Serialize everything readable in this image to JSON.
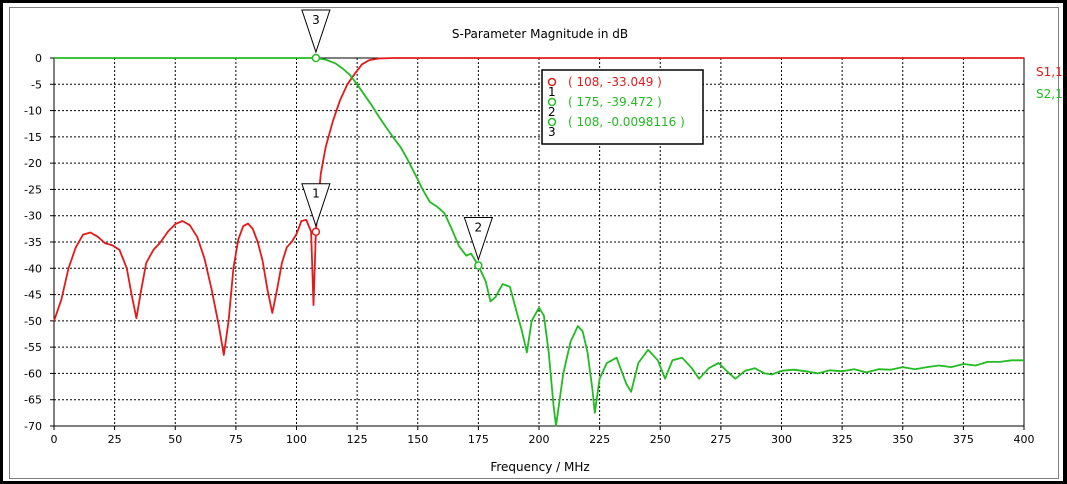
{
  "chart_data": {
    "type": "line",
    "title": "S-Parameter Magnitude in dB",
    "xlabel": "Frequency / MHz",
    "ylabel": "",
    "xlim": [
      0,
      400
    ],
    "ylim": [
      -70,
      0
    ],
    "xticks": [
      0,
      25,
      50,
      75,
      100,
      125,
      150,
      175,
      200,
      225,
      250,
      275,
      300,
      325,
      350,
      375,
      400
    ],
    "yticks": [
      0,
      -5,
      -10,
      -15,
      -20,
      -25,
      -30,
      -35,
      -40,
      -45,
      -50,
      -55,
      -60,
      -65,
      -70
    ],
    "grid": true,
    "legend_placement": "right",
    "series": [
      {
        "name": "S1,1",
        "color": "#e31a1a",
        "points": [
          [
            0,
            -50
          ],
          [
            3,
            -46
          ],
          [
            6,
            -40
          ],
          [
            9,
            -36
          ],
          [
            12,
            -33.6
          ],
          [
            15,
            -33.2
          ],
          [
            18,
            -34
          ],
          [
            21,
            -35.2
          ],
          [
            24,
            -35.6
          ],
          [
            27,
            -36.5
          ],
          [
            30,
            -40
          ],
          [
            32,
            -45
          ],
          [
            34,
            -49.5
          ],
          [
            36,
            -44
          ],
          [
            38,
            -39
          ],
          [
            41,
            -36.5
          ],
          [
            44,
            -35
          ],
          [
            47,
            -33
          ],
          [
            50,
            -31.6
          ],
          [
            53,
            -31
          ],
          [
            56,
            -31.8
          ],
          [
            59,
            -34
          ],
          [
            62,
            -38
          ],
          [
            65,
            -44
          ],
          [
            68,
            -51
          ],
          [
            70,
            -56.5
          ],
          [
            72,
            -50
          ],
          [
            74,
            -40
          ],
          [
            76,
            -34.5
          ],
          [
            78,
            -32
          ],
          [
            80,
            -31.5
          ],
          [
            82,
            -32.5
          ],
          [
            84,
            -35
          ],
          [
            86,
            -38.5
          ],
          [
            88,
            -44
          ],
          [
            90,
            -48.5
          ],
          [
            92,
            -44
          ],
          [
            94,
            -39
          ],
          [
            96,
            -36
          ],
          [
            98,
            -35
          ],
          [
            100,
            -33.5
          ],
          [
            102,
            -31
          ],
          [
            104,
            -30.8
          ],
          [
            106,
            -33
          ],
          [
            107,
            -47
          ],
          [
            108,
            -33
          ],
          [
            109,
            -27
          ],
          [
            110,
            -22
          ],
          [
            112,
            -17
          ],
          [
            115,
            -12
          ],
          [
            118,
            -8
          ],
          [
            121,
            -5
          ],
          [
            124,
            -3
          ],
          [
            127,
            -1.2
          ],
          [
            130,
            -0.4
          ],
          [
            134,
            -0.1
          ],
          [
            140,
            0
          ],
          [
            400,
            0
          ]
        ]
      },
      {
        "name": "S2,1",
        "color": "#22bb22",
        "points": [
          [
            0,
            0
          ],
          [
            100,
            0
          ],
          [
            108,
            0
          ],
          [
            112,
            -0.3
          ],
          [
            116,
            -1
          ],
          [
            119,
            -2
          ],
          [
            122,
            -3.2
          ],
          [
            125,
            -5
          ],
          [
            128,
            -7
          ],
          [
            131,
            -9
          ],
          [
            134,
            -11.2
          ],
          [
            137,
            -13.2
          ],
          [
            140,
            -15.2
          ],
          [
            143,
            -17
          ],
          [
            146,
            -19.5
          ],
          [
            149,
            -22.2
          ],
          [
            152,
            -25
          ],
          [
            155,
            -27.4
          ],
          [
            158,
            -28.3
          ],
          [
            161,
            -29.5
          ],
          [
            164,
            -32.5
          ],
          [
            167,
            -35.8
          ],
          [
            170,
            -37.6
          ],
          [
            172,
            -37.2
          ],
          [
            175,
            -39.5
          ],
          [
            178,
            -42.5
          ],
          [
            180,
            -46.3
          ],
          [
            182,
            -45.5
          ],
          [
            185,
            -43
          ],
          [
            188,
            -43.5
          ],
          [
            190,
            -47
          ],
          [
            193,
            -52
          ],
          [
            195,
            -56
          ],
          [
            197,
            -50
          ],
          [
            200,
            -47.5
          ],
          [
            202,
            -49
          ],
          [
            204,
            -56
          ],
          [
            206,
            -66
          ],
          [
            207,
            -70
          ],
          [
            210,
            -60
          ],
          [
            213,
            -54
          ],
          [
            216,
            -51
          ],
          [
            218,
            -52
          ],
          [
            220,
            -56
          ],
          [
            222,
            -63
          ],
          [
            223,
            -67.5
          ],
          [
            225,
            -61
          ],
          [
            228,
            -58
          ],
          [
            232,
            -57
          ],
          [
            236,
            -62
          ],
          [
            238,
            -63.5
          ],
          [
            241,
            -58
          ],
          [
            245,
            -55.5
          ],
          [
            249,
            -57.5
          ],
          [
            252,
            -61
          ],
          [
            255,
            -57.5
          ],
          [
            259,
            -57
          ],
          [
            263,
            -59
          ],
          [
            266,
            -61
          ],
          [
            270,
            -59
          ],
          [
            274,
            -58
          ],
          [
            278,
            -59.8
          ],
          [
            281,
            -61
          ],
          [
            285,
            -59.5
          ],
          [
            289,
            -59
          ],
          [
            293,
            -60
          ],
          [
            296,
            -60.2
          ],
          [
            300,
            -59.5
          ],
          [
            305,
            -59.3
          ],
          [
            310,
            -59.6
          ],
          [
            315,
            -60
          ],
          [
            320,
            -59.4
          ],
          [
            325,
            -59.6
          ],
          [
            330,
            -59.2
          ],
          [
            335,
            -59.8
          ],
          [
            340,
            -59.2
          ],
          [
            345,
            -59.3
          ],
          [
            350,
            -58.8
          ],
          [
            355,
            -59.2
          ],
          [
            360,
            -58.8
          ],
          [
            365,
            -58.5
          ],
          [
            370,
            -58.8
          ],
          [
            375,
            -58.2
          ],
          [
            380,
            -58.5
          ],
          [
            385,
            -57.8
          ],
          [
            390,
            -57.8
          ],
          [
            395,
            -57.5
          ],
          [
            400,
            -57.5
          ]
        ]
      }
    ],
    "markers": [
      {
        "id": "1",
        "x": 108,
        "y": -33.049,
        "series": "S1,1",
        "color": "#e31a1a",
        "readout": "( 108, -33.049 )"
      },
      {
        "id": "2",
        "x": 175,
        "y": -39.472,
        "series": "S2,1",
        "color": "#22bb22",
        "readout": "( 175, -39.472 )"
      },
      {
        "id": "3",
        "x": 108,
        "y": -0.0098116,
        "series": "S2,1",
        "color": "#22bb22",
        "readout": "( 108, -0.0098116 )"
      }
    ]
  }
}
